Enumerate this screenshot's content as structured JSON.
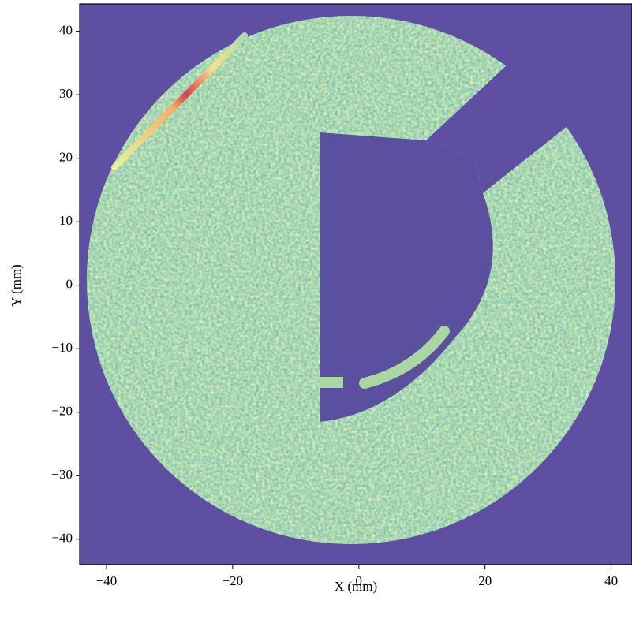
{
  "chart_data": {
    "type": "heatmap",
    "xlabel": "X (mm)",
    "ylabel": "Y (mm)",
    "xlim": [
      -44.25,
      43.3
    ],
    "ylim": [
      -44,
      44.3
    ],
    "xticks": [
      {
        "value": -40,
        "label": "−40"
      },
      {
        "value": -20,
        "label": "−20"
      },
      0,
      20,
      40
    ],
    "yticks": [
      {
        "value": -40,
        "label": "−40"
      },
      {
        "value": -30,
        "label": "−30"
      },
      {
        "value": -20,
        "label": "−20"
      },
      {
        "value": -10,
        "label": "−10"
      },
      0,
      10,
      20,
      30,
      40
    ]
  }
}
